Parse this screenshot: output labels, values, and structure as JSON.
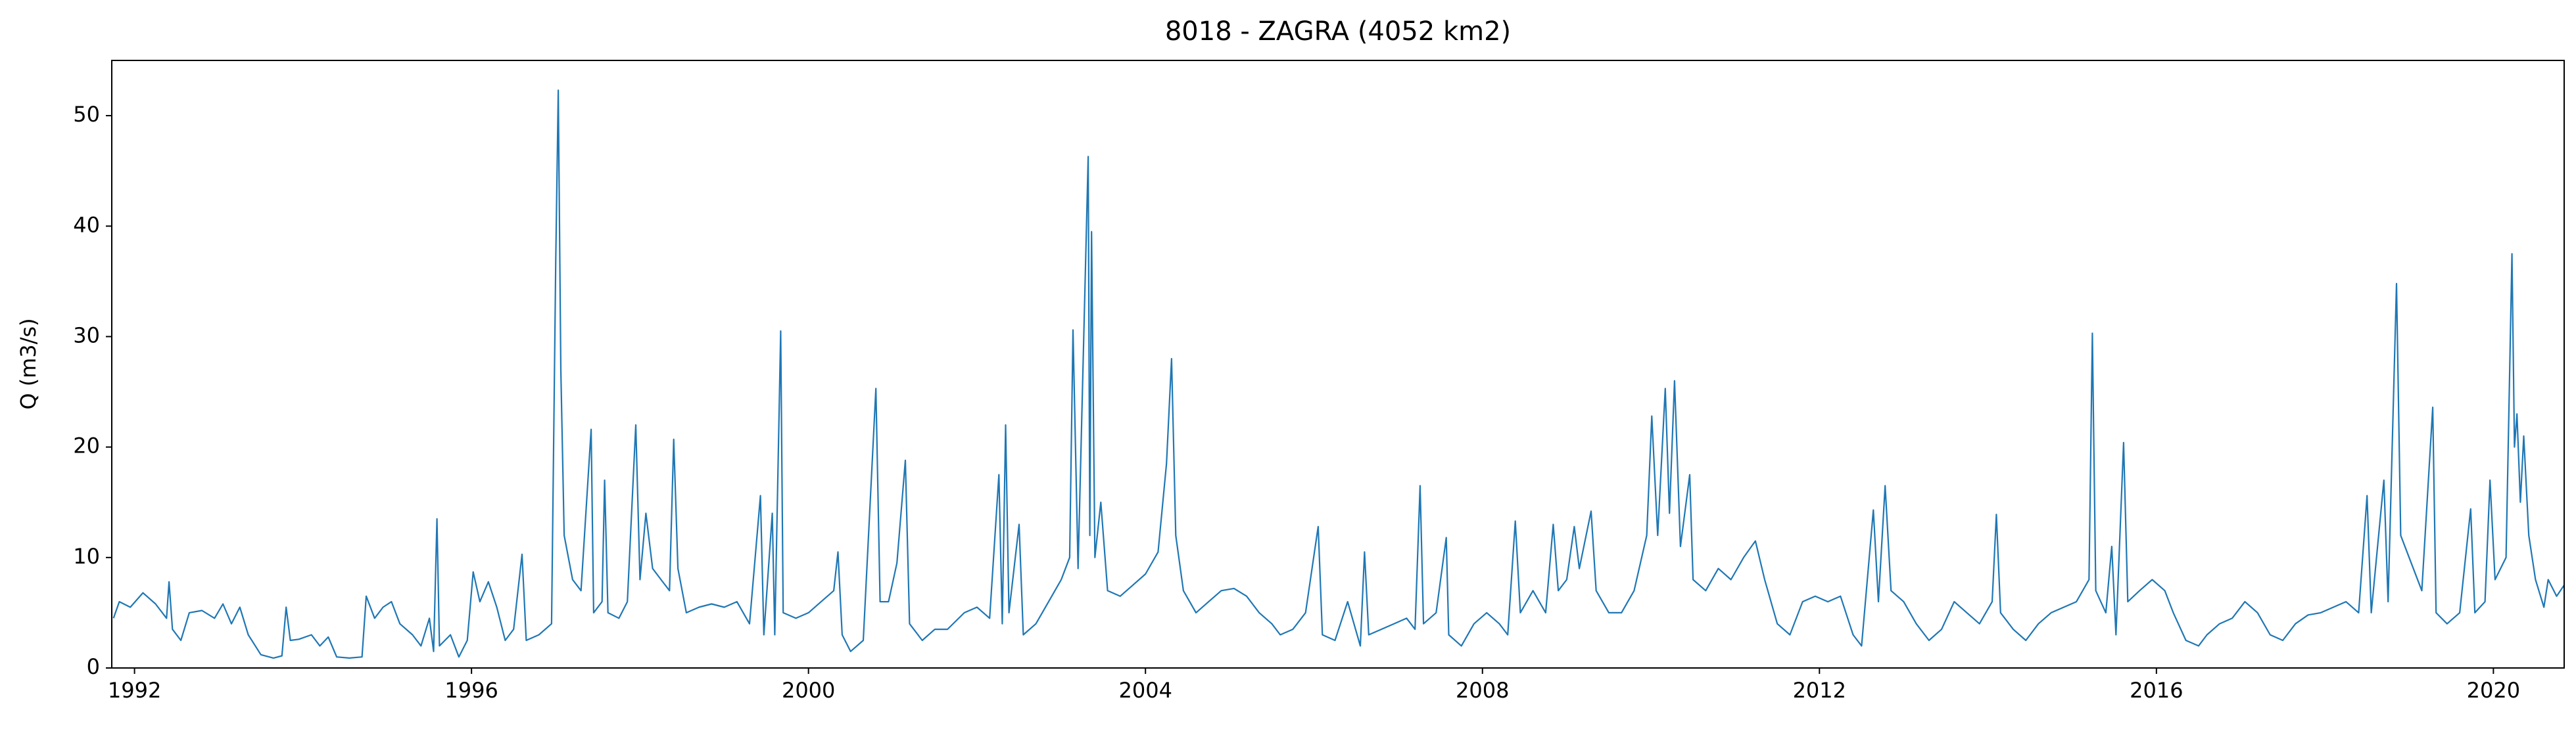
{
  "chart_data": {
    "type": "line",
    "title": "8018 - ZAGRA (4052 km2)",
    "y_label": "Q (m3/s)",
    "color": "#1f77b4",
    "xlim": [
      1991.73,
      2020.84
    ],
    "ylim": [
      0,
      55
    ],
    "xticks": [
      1992,
      1996,
      2000,
      2004,
      2008,
      2012,
      2016,
      2020
    ],
    "yticks": [
      0,
      10,
      20,
      30,
      40,
      50
    ],
    "x": [
      1991.75,
      1991.82,
      1991.95,
      1992.1,
      1992.25,
      1992.38,
      1992.41,
      1992.45,
      1992.55,
      1992.65,
      1992.8,
      1992.95,
      1993.05,
      1993.15,
      1993.25,
      1993.35,
      1993.5,
      1993.65,
      1993.75,
      1993.8,
      1993.85,
      1993.95,
      1994.1,
      1994.2,
      1994.3,
      1994.4,
      1994.55,
      1994.7,
      1994.75,
      1994.85,
      1994.95,
      1995.05,
      1995.15,
      1995.3,
      1995.4,
      1995.5,
      1995.55,
      1995.59,
      1995.62,
      1995.75,
      1995.85,
      1995.95,
      1996.02,
      1996.1,
      1996.2,
      1996.3,
      1996.4,
      1996.5,
      1996.6,
      1996.65,
      1996.8,
      1996.95,
      1997.0,
      1997.03,
      1997.06,
      1997.1,
      1997.2,
      1997.3,
      1997.42,
      1997.45,
      1997.55,
      1997.58,
      1997.62,
      1997.75,
      1997.85,
      1997.95,
      1998.0,
      1998.07,
      1998.15,
      1998.25,
      1998.35,
      1998.4,
      1998.45,
      1998.55,
      1998.7,
      1998.85,
      1999.0,
      1999.15,
      1999.3,
      1999.43,
      1999.47,
      1999.57,
      1999.6,
      1999.67,
      1999.7,
      1999.85,
      2000.0,
      2000.15,
      2000.3,
      2000.35,
      2000.4,
      2000.5,
      2000.65,
      2000.8,
      2000.85,
      2000.95,
      2001.05,
      2001.15,
      2001.2,
      2001.35,
      2001.5,
      2001.65,
      2001.85,
      2002.0,
      2002.15,
      2002.26,
      2002.3,
      2002.34,
      2002.38,
      2002.5,
      2002.55,
      2002.7,
      2002.85,
      2003.0,
      2003.1,
      2003.14,
      2003.2,
      2003.32,
      2003.34,
      2003.36,
      2003.4,
      2003.47,
      2003.55,
      2003.7,
      2003.85,
      2004.0,
      2004.15,
      2004.25,
      2004.31,
      2004.36,
      2004.45,
      2004.6,
      2004.75,
      2004.9,
      2005.05,
      2005.2,
      2005.35,
      2005.5,
      2005.6,
      2005.75,
      2005.9,
      2006.05,
      2006.1,
      2006.25,
      2006.4,
      2006.55,
      2006.6,
      2006.65,
      2006.8,
      2006.95,
      2007.1,
      2007.2,
      2007.26,
      2007.3,
      2007.45,
      2007.57,
      2007.6,
      2007.75,
      2007.9,
      2008.05,
      2008.2,
      2008.3,
      2008.39,
      2008.45,
      2008.6,
      2008.75,
      2008.84,
      2008.9,
      2009.0,
      2009.09,
      2009.15,
      2009.29,
      2009.35,
      2009.5,
      2009.65,
      2009.8,
      2009.95,
      2010.01,
      2010.08,
      2010.17,
      2010.22,
      2010.28,
      2010.35,
      2010.46,
      2010.5,
      2010.65,
      2010.8,
      2010.95,
      2011.1,
      2011.24,
      2011.35,
      2011.5,
      2011.65,
      2011.8,
      2011.95,
      2012.1,
      2012.25,
      2012.4,
      2012.5,
      2012.64,
      2012.7,
      2012.78,
      2012.85,
      2013.0,
      2013.15,
      2013.3,
      2013.45,
      2013.6,
      2013.75,
      2013.9,
      2014.05,
      2014.1,
      2014.15,
      2014.3,
      2014.45,
      2014.6,
      2014.75,
      2014.9,
      2015.05,
      2015.2,
      2015.24,
      2015.28,
      2015.4,
      2015.47,
      2015.52,
      2015.61,
      2015.66,
      2015.8,
      2015.95,
      2016.1,
      2016.2,
      2016.35,
      2016.5,
      2016.6,
      2016.75,
      2016.9,
      2017.05,
      2017.2,
      2017.35,
      2017.5,
      2017.65,
      2017.8,
      2017.95,
      2018.1,
      2018.25,
      2018.4,
      2018.5,
      2018.55,
      2018.7,
      2018.75,
      2018.85,
      2018.9,
      2019.0,
      2019.15,
      2019.28,
      2019.32,
      2019.45,
      2019.6,
      2019.73,
      2019.78,
      2019.9,
      2019.96,
      2020.02,
      2020.15,
      2020.22,
      2020.25,
      2020.28,
      2020.32,
      2020.36,
      2020.42,
      2020.5,
      2020.6,
      2020.65,
      2020.75,
      2020.84
    ],
    "values": [
      4.5,
      6,
      5.5,
      6.8,
      5.8,
      4.5,
      7.8,
      3.5,
      2.5,
      5,
      5.2,
      4.5,
      5.8,
      4,
      5.5,
      3,
      1.2,
      0.9,
      1.1,
      5.5,
      2.5,
      2.6,
      3,
      2,
      2.8,
      1,
      0.9,
      1,
      6.5,
      4.5,
      5.5,
      6,
      4,
      3,
      2,
      4.5,
      1.5,
      13.5,
      2,
      3,
      1,
      2.5,
      8.7,
      6,
      7.8,
      5.5,
      2.5,
      3.5,
      10.3,
      2.5,
      3,
      4,
      37,
      52.3,
      27,
      12,
      8,
      7,
      21.6,
      5,
      6,
      17,
      5,
      4.5,
      6,
      22,
      8,
      14,
      9,
      8,
      7,
      20.7,
      9,
      5,
      5.5,
      5.8,
      5.5,
      6,
      4,
      15.6,
      3,
      14,
      3,
      30.5,
      5,
      4.5,
      5,
      6,
      7,
      10.5,
      3,
      1.5,
      2.5,
      25.3,
      6,
      6,
      9.5,
      18.8,
      4,
      2.5,
      3.5,
      3.5,
      5,
      5.5,
      4.5,
      17.5,
      4,
      22,
      5,
      13,
      3,
      4,
      6,
      8,
      10,
      30.6,
      9,
      46.3,
      12,
      39.5,
      10,
      15,
      7,
      6.5,
      7.5,
      8.5,
      10.5,
      18.5,
      28,
      12,
      7,
      5,
      6,
      7,
      7.2,
      6.5,
      5,
      4,
      3,
      3.5,
      5,
      12.8,
      3,
      2.5,
      6,
      2,
      10.5,
      3,
      3.5,
      4,
      4.5,
      3.5,
      16.5,
      4,
      5,
      11.8,
      3,
      2,
      4,
      5,
      4,
      3,
      13.3,
      5,
      7,
      5,
      13,
      7,
      8,
      12.8,
      9,
      14.2,
      7,
      5,
      5,
      7,
      12,
      22.8,
      12,
      25.3,
      14,
      26,
      11,
      17.5,
      8,
      7,
      9,
      8,
      10,
      11.5,
      8,
      4,
      3,
      6,
      6.5,
      6,
      6.5,
      3,
      2,
      14.3,
      6,
      16.5,
      7,
      6,
      4,
      2.5,
      3.5,
      6,
      5,
      4,
      6,
      13.9,
      5,
      3.5,
      2.5,
      4,
      5,
      5.5,
      6,
      8,
      30.3,
      7,
      5,
      11,
      3,
      20.4,
      6,
      7,
      8,
      7,
      5,
      2.5,
      2,
      3,
      4,
      4.5,
      6,
      5,
      3,
      2.5,
      4,
      4.8,
      5,
      5.5,
      6,
      5,
      15.6,
      5,
      17,
      6,
      34.8,
      12,
      10,
      7,
      23.6,
      5,
      4,
      5,
      14.4,
      5,
      6,
      17,
      8,
      10,
      37.5,
      20,
      23,
      15,
      21,
      12,
      8,
      5.5,
      8,
      6.5,
      7.5
    ]
  }
}
